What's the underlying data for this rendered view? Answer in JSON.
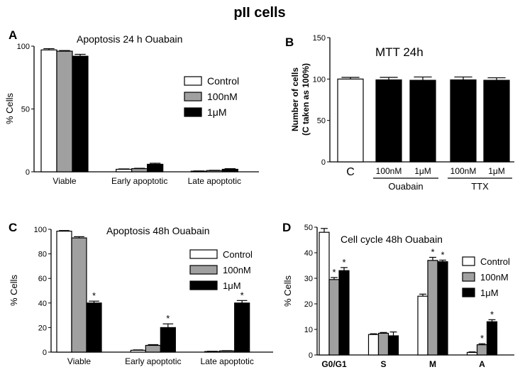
{
  "figure": {
    "title": "pII cells"
  },
  "colors": {
    "Control": "#ffffff",
    "100nM": "#a0a0a0",
    "1μM": "#000000"
  },
  "chart_data": [
    {
      "panel": "A",
      "type": "bar",
      "title": "Apoptosis 24 h Ouabain",
      "ylabel": "% Cells",
      "ylim": [
        0,
        100
      ],
      "yticks": [
        0,
        50,
        100
      ],
      "legend": "right",
      "categories": [
        "Viable",
        "Early apoptotic",
        "Late apoptotic"
      ],
      "series": [
        {
          "name": "Control",
          "values": [
            97,
            2,
            0.5
          ],
          "errors": [
            1,
            0.3,
            0.2
          ]
        },
        {
          "name": "100nM",
          "values": [
            96,
            2.5,
            1
          ],
          "errors": [
            0.5,
            0.3,
            0.2
          ]
        },
        {
          "name": "1μM",
          "values": [
            92,
            6,
            2
          ],
          "errors": [
            1.5,
            0.8,
            0.5
          ]
        }
      ],
      "significant": []
    },
    {
      "panel": "B",
      "type": "bar",
      "title": "MTT 24h",
      "ylabel": "Number of cells (C taken as 100%)",
      "ylim": [
        0,
        150
      ],
      "yticks": [
        0,
        50,
        100,
        150
      ],
      "categories": [
        "C",
        "100nM",
        "1μM",
        "100nM",
        "1μM"
      ],
      "groups": [
        {
          "label": "Ouabain",
          "members": [
            1,
            2
          ]
        },
        {
          "label": "TTX",
          "members": [
            3,
            4
          ]
        }
      ],
      "colors": [
        "#ffffff",
        "#000000",
        "#000000",
        "#000000",
        "#000000"
      ],
      "values": [
        100,
        99,
        98.5,
        99,
        98.5
      ],
      "errors": [
        2,
        3,
        4,
        3.5,
        3
      ]
    },
    {
      "panel": "C",
      "type": "bar",
      "title": "Apoptosis 48h Ouabain",
      "ylabel": "% Cells",
      "ylim": [
        0,
        100
      ],
      "yticks": [
        0,
        20,
        40,
        60,
        80,
        100
      ],
      "legend": "right",
      "categories": [
        "Viable",
        "Early apoptotic",
        "Late apoptotic"
      ],
      "series": [
        {
          "name": "Control",
          "values": [
            98.5,
            1.5,
            0.5
          ],
          "errors": [
            0.5,
            0.3,
            0.2
          ]
        },
        {
          "name": "100nM",
          "values": [
            93,
            5.5,
            1
          ],
          "errors": [
            1,
            0.6,
            0.2
          ]
        },
        {
          "name": "1μM",
          "values": [
            40,
            20,
            40
          ],
          "errors": [
            1.5,
            3,
            2
          ]
        }
      ],
      "significant": [
        [
          2,
          0
        ],
        [
          2,
          1
        ],
        [
          2,
          2
        ]
      ]
    },
    {
      "panel": "D",
      "type": "bar",
      "title": "Cell cycle 48h Ouabain",
      "ylabel": "% Cells",
      "ylim": [
        0,
        50
      ],
      "yticks": [
        0,
        10,
        20,
        30,
        40,
        50
      ],
      "legend": "top-right",
      "categories": [
        "G0/G1",
        "S",
        "M",
        "A"
      ],
      "series": [
        {
          "name": "Control",
          "values": [
            48,
            8,
            23,
            1
          ],
          "errors": [
            1.5,
            0.3,
            0.8,
            0.2
          ]
        },
        {
          "name": "100nM",
          "values": [
            29.5,
            8.5,
            37,
            4
          ],
          "errors": [
            0.8,
            0.3,
            1.2,
            0.4
          ]
        },
        {
          "name": "1μM",
          "values": [
            33,
            7.5,
            36.5,
            13
          ],
          "errors": [
            1.2,
            1.5,
            0.6,
            0.8
          ]
        }
      ],
      "significant": [
        [
          1,
          0
        ],
        [
          2,
          0
        ],
        [
          1,
          2
        ],
        [
          2,
          2
        ],
        [
          1,
          3
        ],
        [
          2,
          3
        ]
      ]
    }
  ]
}
